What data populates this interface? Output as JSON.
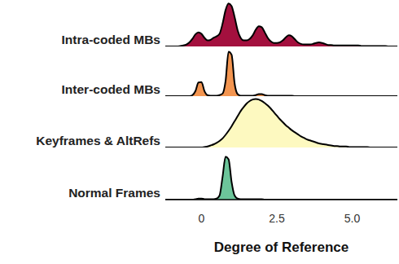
{
  "chart_data": {
    "type": "ridgeline",
    "xlabel": "Degree of Reference",
    "xlim": [
      -1.2,
      6.5
    ],
    "xticks": [
      0,
      2.5,
      {
        "value": 5,
        "label": "5.0"
      }
    ],
    "ylim": [
      0,
      1
    ],
    "tick_labels": "x",
    "x": [
      -1.2,
      -1.1,
      -1.0,
      -0.9,
      -0.8,
      -0.7,
      -0.6,
      -0.5,
      -0.4,
      -0.3,
      -0.2,
      -0.1,
      0.0,
      0.1,
      0.2,
      0.3,
      0.4,
      0.5,
      0.6,
      0.7,
      0.8,
      0.9,
      1.0,
      1.1,
      1.2,
      1.3,
      1.4,
      1.5,
      1.6,
      1.7,
      1.8,
      1.9,
      2.0,
      2.1,
      2.2,
      2.3,
      2.4,
      2.5,
      2.6,
      2.7,
      2.8,
      2.9,
      3.0,
      3.1,
      3.2,
      3.3,
      3.4,
      3.5,
      3.6,
      3.7,
      3.8,
      3.9,
      4.0,
      4.1,
      4.2,
      4.3,
      4.4,
      4.5,
      4.6,
      4.7,
      4.8,
      4.9,
      5.0,
      5.1,
      5.2,
      5.3,
      5.4,
      5.5,
      5.6,
      5.7,
      5.8,
      5.9,
      6.0,
      6.1,
      6.2,
      6.3,
      6.4,
      6.5
    ],
    "series": [
      {
        "name": "Intra-coded MBs",
        "color": "#a3103e",
        "values": [
          0,
          0,
          0,
          0,
          0,
          0.01,
          0.02,
          0.04,
          0.08,
          0.15,
          0.24,
          0.28,
          0.25,
          0.17,
          0.12,
          0.13,
          0.17,
          0.2,
          0.25,
          0.45,
          0.72,
          0.85,
          0.8,
          0.58,
          0.32,
          0.17,
          0.12,
          0.12,
          0.15,
          0.22,
          0.33,
          0.4,
          0.38,
          0.28,
          0.17,
          0.1,
          0.07,
          0.07,
          0.08,
          0.12,
          0.18,
          0.22,
          0.2,
          0.14,
          0.08,
          0.05,
          0.04,
          0.04,
          0.04,
          0.05,
          0.07,
          0.08,
          0.07,
          0.05,
          0.03,
          0.03,
          0.02,
          0.02,
          0.02,
          0.02,
          0.02,
          0.02,
          0.02,
          0.02,
          0.02,
          0.01,
          0.01,
          0.01,
          0.01,
          0.01,
          0.01,
          0.01,
          0.01,
          0.01,
          0,
          0,
          0,
          0
        ]
      },
      {
        "name": "Inter-coded MBs",
        "color": "#f39550",
        "values": [
          0,
          0,
          0,
          0,
          0,
          0,
          0,
          0,
          0,
          0.02,
          0.1,
          0.27,
          0.28,
          0.1,
          0.02,
          0.01,
          0.01,
          0.01,
          0.02,
          0.05,
          0.3,
          0.88,
          0.82,
          0.25,
          0.04,
          0.01,
          0.01,
          0.01,
          0.01,
          0.01,
          0.02,
          0.04,
          0.04,
          0.02,
          0.01,
          0.01,
          0.01,
          0.01,
          0.01,
          0.01,
          0.01,
          0.01,
          0.01,
          0,
          0,
          0,
          0,
          0,
          0,
          0,
          0,
          0,
          0,
          0,
          0,
          0,
          0,
          0,
          0,
          0,
          0,
          0,
          0,
          0,
          0,
          0,
          0,
          0,
          0,
          0,
          0,
          0,
          0,
          0,
          0,
          0,
          0,
          0
        ]
      },
      {
        "name": "Keyframes & AltRefs",
        "color": "#fdf9c0",
        "values": [
          0,
          0,
          0,
          0,
          0,
          0,
          0,
          0,
          0,
          0,
          0,
          0,
          0,
          0.01,
          0.02,
          0.04,
          0.06,
          0.09,
          0.13,
          0.18,
          0.25,
          0.33,
          0.42,
          0.52,
          0.62,
          0.72,
          0.8,
          0.87,
          0.92,
          0.95,
          0.96,
          0.95,
          0.92,
          0.88,
          0.83,
          0.77,
          0.7,
          0.63,
          0.56,
          0.5,
          0.44,
          0.39,
          0.34,
          0.3,
          0.26,
          0.22,
          0.19,
          0.16,
          0.14,
          0.12,
          0.1,
          0.08,
          0.07,
          0.06,
          0.05,
          0.04,
          0.03,
          0.03,
          0.02,
          0.02,
          0.02,
          0.01,
          0.01,
          0.01,
          0.01,
          0.01,
          0.01,
          0.01,
          0,
          0,
          0,
          0,
          0,
          0,
          0,
          0,
          0,
          0
        ]
      },
      {
        "name": "Normal Frames",
        "color": "#6cc59a",
        "values": [
          0,
          0,
          0,
          0,
          0,
          0,
          0,
          0,
          0,
          0,
          0.01,
          0.02,
          0.02,
          0.01,
          0.01,
          0.01,
          0.01,
          0.02,
          0.08,
          0.45,
          0.85,
          0.8,
          0.35,
          0.08,
          0.02,
          0.01,
          0.01,
          0.01,
          0.01,
          0.01,
          0.01,
          0.01,
          0.01,
          0,
          0,
          0,
          0,
          0,
          0,
          0,
          0,
          0,
          0,
          0,
          0,
          0,
          0,
          0,
          0,
          0,
          0,
          0,
          0,
          0,
          0,
          0,
          0,
          0,
          0,
          0,
          0,
          0,
          0,
          0,
          0,
          0,
          0,
          0,
          0,
          0,
          0,
          0,
          0,
          0,
          0,
          0,
          0,
          0
        ]
      }
    ]
  }
}
